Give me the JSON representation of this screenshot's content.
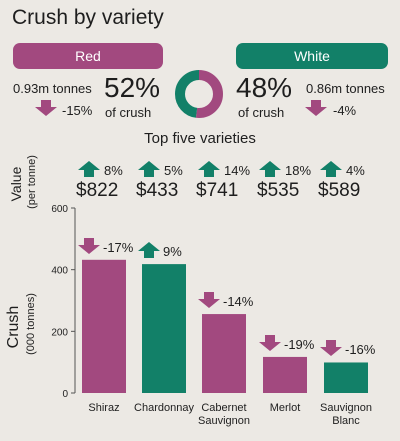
{
  "title": "Crush by variety",
  "subtitle": "Top five varieties",
  "colors": {
    "red": "#a2497f",
    "white": "#128068",
    "background": "#ece9e4",
    "up": "#128068",
    "down": "#a2497f"
  },
  "red": {
    "label": "Red",
    "tonnes": "0.93m tonnes",
    "share": "52%",
    "share_caption": "of crush",
    "change": "-15%",
    "direction": "down"
  },
  "white": {
    "label": "White",
    "tonnes": "0.86m tonnes",
    "share": "48%",
    "share_caption": "of crush",
    "change": "-4%",
    "direction": "down"
  },
  "value_axis": {
    "label": "Value",
    "sublabel": "(per tonne)"
  },
  "crush_axis": {
    "label": "Crush",
    "sublabel": "(000 tonnes)"
  },
  "varieties": [
    {
      "name": "Shiraz",
      "name_line2": "",
      "value": "$822",
      "value_change": "8%",
      "value_dir": "up",
      "crush_change": "-17%",
      "crush_dir": "down"
    },
    {
      "name": "Chardonnay",
      "name_line2": "",
      "value": "$433",
      "value_change": "5%",
      "value_dir": "up",
      "crush_change": "9%",
      "crush_dir": "up"
    },
    {
      "name": "Cabernet",
      "name_line2": "Sauvignon",
      "value": "$741",
      "value_change": "14%",
      "value_dir": "up",
      "crush_change": "-14%",
      "crush_dir": "down"
    },
    {
      "name": "Merlot",
      "name_line2": "",
      "value": "$535",
      "value_change": "18%",
      "value_dir": "up",
      "crush_change": "-19%",
      "crush_dir": "down"
    },
    {
      "name": "Sauvignon",
      "name_line2": "Blanc",
      "value": "$589",
      "value_change": "4%",
      "value_dir": "up",
      "crush_change": "-16%",
      "crush_dir": "down"
    }
  ],
  "chart_data": [
    {
      "type": "pie",
      "categories": [
        "Red",
        "White"
      ],
      "values": [
        52,
        48
      ],
      "unit": "% of crush"
    },
    {
      "type": "bar",
      "title": "Top five varieties",
      "categories": [
        "Shiraz",
        "Chardonnay",
        "Cabernet Sauvignon",
        "Merlot",
        "Sauvignon Blanc"
      ],
      "series": [
        {
          "values": [
            432,
            418,
            256,
            117,
            99
          ]
        }
      ],
      "bar_colors": [
        "#a2497f",
        "#128068",
        "#a2497f",
        "#a2497f",
        "#128068"
      ],
      "ylabel": "Crush (000 tonnes)",
      "ylim": [
        0,
        600
      ],
      "yticks": [
        0,
        200,
        400,
        600
      ],
      "value_per_tonne": [
        822,
        433,
        741,
        535,
        589
      ],
      "value_change_pct": [
        8,
        5,
        14,
        18,
        4
      ],
      "crush_change_pct": [
        -17,
        9,
        -14,
        -19,
        -16
      ]
    }
  ]
}
